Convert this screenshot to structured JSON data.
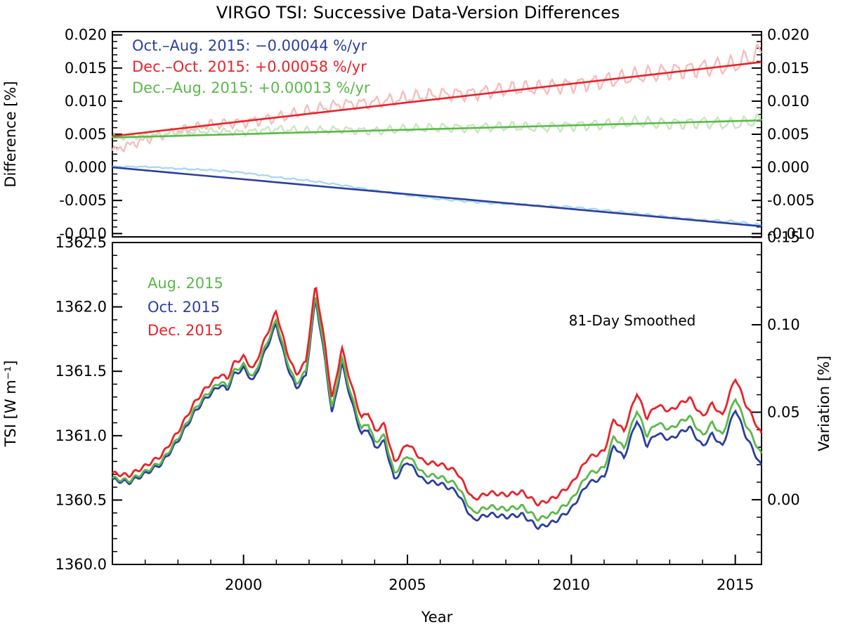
{
  "chart_data": [
    {
      "type": "line",
      "panel": "top",
      "title": "VIRGO TSI: Successive Data-Version Differences",
      "ylabel": "Difference [%]",
      "xlim": [
        1996.0,
        2015.8
      ],
      "ylim": [
        -0.0105,
        0.0205
      ],
      "y_ticks": [
        "0.020",
        "0.015",
        "0.010",
        "0.005",
        "0.000",
        "-0.005",
        "-0.010"
      ],
      "y_tick_values": [
        0.02,
        0.015,
        0.01,
        0.005,
        0.0,
        -0.005,
        -0.01
      ],
      "legend": [
        {
          "text": "Oct.–Aug. 2015: −0.00044 %/yr",
          "color": "#2b3f9e"
        },
        {
          "text": "Dec.–Oct. 2015: +0.00058 %/yr",
          "color": "#e8232a"
        },
        {
          "text": "Dec.–Aug. 2015: +0.00013 %/yr",
          "color": "#5bb84a"
        }
      ],
      "series": [
        {
          "name": "Dec.–Oct. 2015 trend",
          "color": "#e8232a",
          "x": [
            1996.0,
            2015.8
          ],
          "y": [
            0.0047,
            0.0159
          ]
        },
        {
          "name": "Dec.–Aug. 2015 trend",
          "color": "#5bb84a",
          "x": [
            1996.0,
            2015.8
          ],
          "y": [
            0.0045,
            0.0071
          ]
        },
        {
          "name": "Oct.–Aug. 2015 trend",
          "color": "#2b3f9e",
          "x": [
            1996.0,
            2015.8
          ],
          "y": [
            0.0,
            -0.0089
          ]
        },
        {
          "name": "Dec.–Oct. 2015 difference",
          "color": "#f7bcbc",
          "x": [
            1996.0,
            1997.0,
            1998.0,
            1999.0,
            2000.0,
            2001.0,
            2002.0,
            2003.0,
            2004.0,
            2005.0,
            2006.0,
            2007.0,
            2008.0,
            2009.0,
            2010.0,
            2011.0,
            2012.0,
            2013.0,
            2014.0,
            2015.0,
            2015.8
          ],
          "y": [
            0.0025,
            0.0042,
            0.0055,
            0.0065,
            0.0068,
            0.0075,
            0.0085,
            0.0095,
            0.0098,
            0.0105,
            0.011,
            0.0112,
            0.0118,
            0.012,
            0.0125,
            0.013,
            0.0138,
            0.0145,
            0.015,
            0.0155,
            0.0175
          ]
        },
        {
          "name": "Dec.–Aug. 2015 difference",
          "color": "#c9e6bd",
          "x": [
            1996.0,
            1997.0,
            1998.0,
            1999.0,
            2000.0,
            2001.0,
            2002.0,
            2003.0,
            2004.0,
            2005.0,
            2006.0,
            2007.0,
            2008.0,
            2009.0,
            2010.0,
            2011.0,
            2012.0,
            2013.0,
            2014.0,
            2015.0,
            2015.8
          ],
          "y": [
            0.0045,
            0.0048,
            0.0052,
            0.0055,
            0.0053,
            0.0058,
            0.0055,
            0.0057,
            0.0055,
            0.0058,
            0.006,
            0.006,
            0.0062,
            0.006,
            0.0063,
            0.0065,
            0.0068,
            0.0066,
            0.0068,
            0.0065,
            0.0072
          ]
        },
        {
          "name": "Oct.–Aug. 2015 difference",
          "color": "#a9d8f3",
          "x": [
            1996.0,
            1997.0,
            1998.0,
            1999.0,
            2000.0,
            2001.0,
            2002.0,
            2003.0,
            2004.0,
            2005.0,
            2006.0,
            2007.0,
            2008.0,
            2009.0,
            2010.0,
            2011.0,
            2012.0,
            2013.0,
            2014.0,
            2015.0,
            2015.8
          ],
          "y": [
            0.0001,
            0.0001,
            -0.0002,
            -0.0004,
            -0.0008,
            -0.0015,
            -0.002,
            -0.0027,
            -0.0035,
            -0.0042,
            -0.0048,
            -0.0052,
            -0.0055,
            -0.0058,
            -0.006,
            -0.0065,
            -0.007,
            -0.0075,
            -0.008,
            -0.0082,
            -0.0088
          ]
        }
      ]
    },
    {
      "type": "line",
      "panel": "bottom",
      "xlabel": "Year",
      "ylabel": "TSI [W m⁻¹]",
      "ylabel_right": "Variation [%]",
      "annotation": "81-Day Smoothed",
      "xlim": [
        1996.0,
        2015.8
      ],
      "ylim": [
        1360.0,
        1362.5
      ],
      "x_ticks": [
        "2000",
        "2005",
        "2010",
        "2015"
      ],
      "x_tick_values": [
        2000,
        2005,
        2010,
        2015
      ],
      "y_ticks": [
        "1362.5",
        "1362.0",
        "1361.5",
        "1361.0",
        "1360.5",
        "1360.0"
      ],
      "y_tick_values": [
        1362.5,
        1362.0,
        1361.5,
        1361.0,
        1360.5,
        1360.0
      ],
      "y2_ticks": [
        "0.15",
        "0.10",
        "0.05",
        "0.00"
      ],
      "y2_tick_values": [
        0.15,
        0.1,
        0.05,
        0.0
      ],
      "y2_lim": [
        -0.037,
        0.147
      ],
      "legend": [
        {
          "text": "Aug. 2015",
          "color": "#5bb84a"
        },
        {
          "text": "Oct. 2015",
          "color": "#2b3f9e"
        },
        {
          "text": "Dec. 2015",
          "color": "#e8232a"
        }
      ],
      "base_x": [
        1996.0,
        1996.5,
        1997.0,
        1997.5,
        1998.0,
        1998.5,
        1998.8,
        1999.0,
        1999.3,
        1999.5,
        1999.7,
        2000.0,
        2000.3,
        2000.6,
        2001.0,
        2001.3,
        2001.6,
        2001.9,
        2002.2,
        2002.5,
        2002.7,
        2003.0,
        2003.3,
        2003.6,
        2003.8,
        2004.0,
        2004.3,
        2004.6,
        2005.0,
        2005.5,
        2006.0,
        2006.5,
        2007.0,
        2007.5,
        2008.0,
        2008.5,
        2009.0,
        2009.5,
        2010.0,
        2010.5,
        2011.0,
        2011.3,
        2011.6,
        2012.0,
        2012.3,
        2012.6,
        2013.0,
        2013.3,
        2013.6,
        2014.0,
        2014.3,
        2014.6,
        2015.0,
        2015.3,
        2015.8
      ],
      "base_y": [
        1360.67,
        1360.65,
        1360.72,
        1360.8,
        1360.98,
        1361.2,
        1361.3,
        1361.35,
        1361.42,
        1361.38,
        1361.5,
        1361.55,
        1361.45,
        1361.65,
        1361.9,
        1361.6,
        1361.4,
        1361.5,
        1362.1,
        1361.6,
        1361.2,
        1361.6,
        1361.3,
        1361.05,
        1361.1,
        1360.95,
        1361.0,
        1360.7,
        1360.85,
        1360.7,
        1360.68,
        1360.62,
        1360.4,
        1360.45,
        1360.43,
        1360.45,
        1360.35,
        1360.4,
        1360.5,
        1360.7,
        1360.75,
        1361.0,
        1360.9,
        1361.2,
        1361.0,
        1361.1,
        1361.05,
        1361.1,
        1361.15,
        1361.0,
        1361.1,
        1361.0,
        1361.3,
        1361.1,
        1360.85
      ],
      "series": [
        {
          "name": "Oct. 2015",
          "color": "#2b3f9e",
          "trend_offset": -0.00044
        },
        {
          "name": "Aug. 2015",
          "color": "#5bb84a",
          "trend_offset": 0.0
        },
        {
          "name": "Dec. 2015",
          "color": "#e8232a",
          "trend_offset": 0.00013
        }
      ]
    }
  ]
}
